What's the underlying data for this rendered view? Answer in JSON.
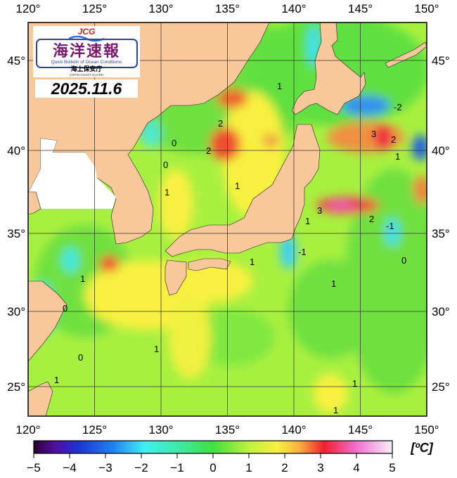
{
  "logo": {
    "brand": "JCG",
    "title_ja": "海洋速報",
    "subtitle_en": "Quick Bulletin of Ocean Conditions",
    "agency_ja": "海上保安庁",
    "agency_en": "JAPAN COAST GUARD"
  },
  "date": "2025.11.6",
  "map": {
    "lon_range": [
      120,
      150
    ],
    "lat_range": [
      23,
      47
    ],
    "lon_labels": [
      "120°",
      "125°",
      "130°",
      "135°",
      "140°",
      "145°",
      "150°"
    ],
    "lat_labels": [
      "45°",
      "40°",
      "35°",
      "30°",
      "25°"
    ],
    "contour_labels": [
      "1",
      "2",
      "2",
      "0",
      "0",
      "1",
      "1",
      "-2",
      "3",
      "2",
      "1",
      "3",
      "2",
      "1",
      "-1",
      "0",
      "1",
      "-1",
      "1",
      "0",
      "1",
      "1",
      "0",
      "1",
      "1",
      "1"
    ],
    "land_color": "#f8c89a",
    "no_data_color": "#ffffff"
  },
  "colorbar": {
    "unit": "[ºC]",
    "ticks": [
      "−5",
      "−4",
      "−3",
      "−2",
      "−1",
      "0",
      "1",
      "2",
      "3",
      "4",
      "5"
    ],
    "range": [
      -5,
      5
    ],
    "colors": [
      "#2a0030",
      "#5010a0",
      "#2040e0",
      "#2090f0",
      "#40f0f0",
      "#40e8a0",
      "#40e040",
      "#b0f040",
      "#f8f040",
      "#f8b040",
      "#f04030",
      "#f02050",
      "#f080d0",
      "#f8f0f8"
    ]
  }
}
